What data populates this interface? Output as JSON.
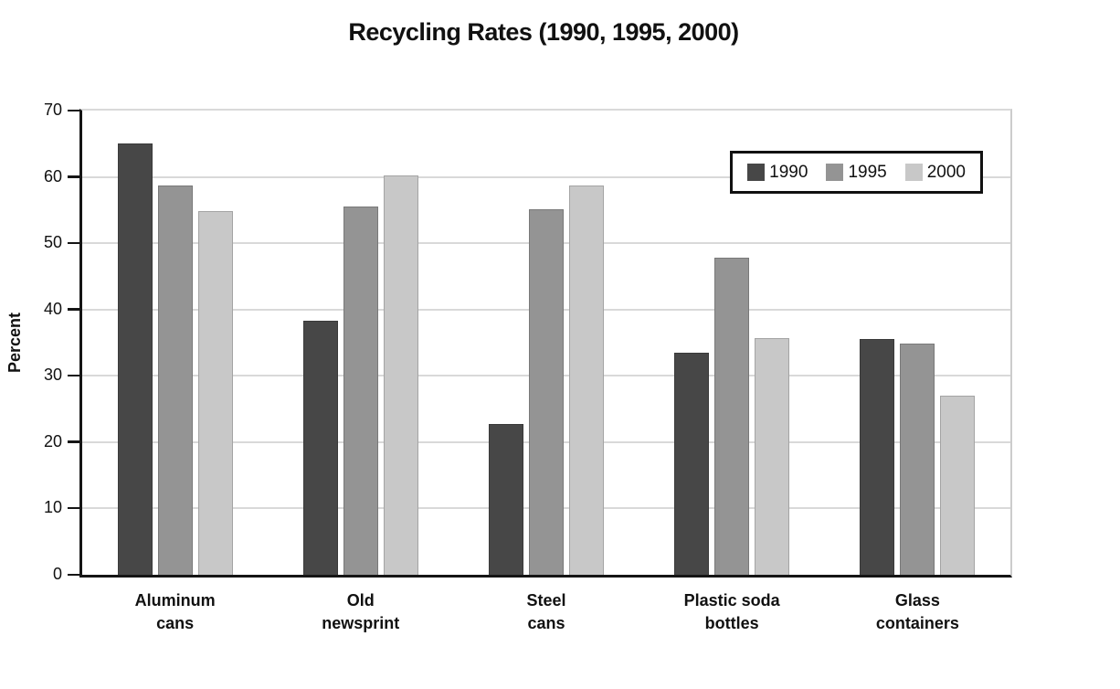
{
  "title": "Recycling Rates (1990, 1995, 2000)",
  "chart_data": {
    "type": "bar",
    "title": "Recycling Rates (1990, 1995, 2000)",
    "xlabel": "",
    "ylabel": "Percent",
    "ylim": [
      0,
      70
    ],
    "ytick_step": 10,
    "grid": true,
    "legend_position": "top-right",
    "categories": [
      "Aluminum\ncans",
      "Old\nnewsprint",
      "Steel\ncans",
      "Plastic soda\nbottles",
      "Glass\ncontainers"
    ],
    "series": [
      {
        "name": "1990",
        "color": "#474747",
        "values": [
          65.0,
          38.3,
          22.7,
          33.5,
          35.5
        ]
      },
      {
        "name": "1995",
        "color": "#949494",
        "values": [
          58.7,
          55.6,
          55.1,
          47.8,
          34.8
        ]
      },
      {
        "name": "2000",
        "color": "#c8c8c8",
        "values": [
          54.8,
          60.2,
          58.7,
          35.7,
          27.0
        ]
      }
    ],
    "colors": {
      "axis": "#151515",
      "gridline": "#d9d9d9",
      "text": "#111111"
    }
  }
}
